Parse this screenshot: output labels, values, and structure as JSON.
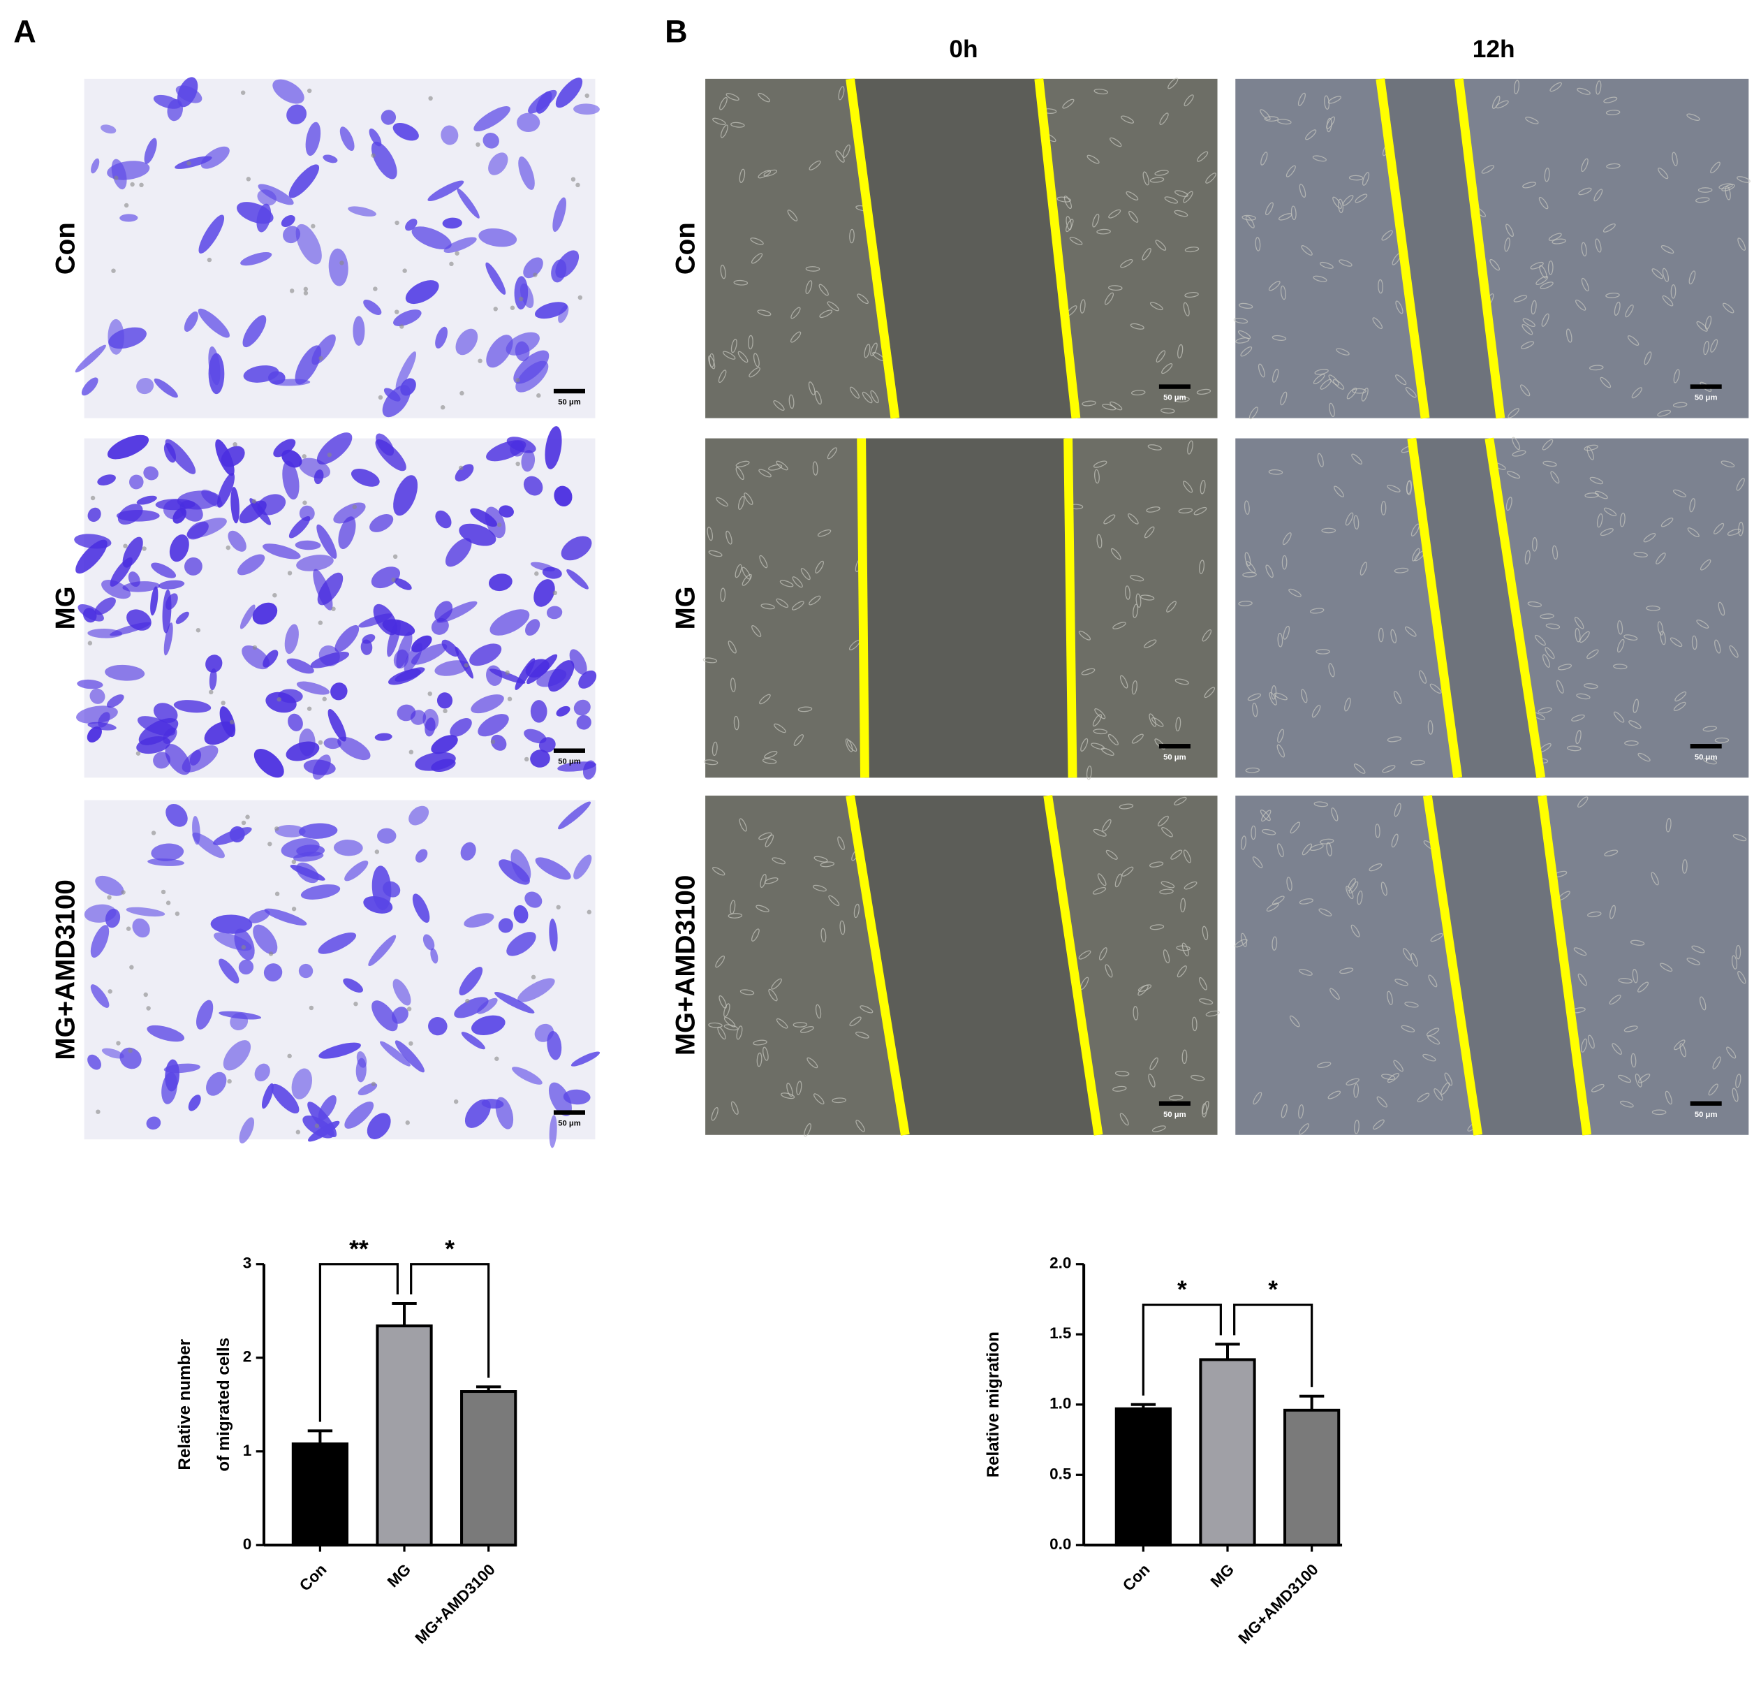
{
  "panel_a": {
    "label": "A",
    "rows": [
      "Con",
      "MG",
      "MG+AMD3100"
    ],
    "scale_bar": "50 μm"
  },
  "panel_b": {
    "label": "B",
    "columns": [
      "0h",
      "12h"
    ],
    "rows": [
      "Con",
      "MG",
      "MG+AMD3100"
    ],
    "scale_bar": "50 μm"
  },
  "chart_data": [
    {
      "type": "bar",
      "ylabel": [
        "Relative number",
        "of migrated cells"
      ],
      "categories": [
        "Con",
        "MG",
        "MG+AMD3100"
      ],
      "values": [
        1.08,
        2.34,
        1.64
      ],
      "errors": [
        0.14,
        0.24,
        0.05
      ],
      "colors": [
        "#000000",
        "#a0a0a6",
        "#7a7a7a"
      ],
      "ylim": [
        0,
        3
      ],
      "yticks": [
        0,
        1,
        2,
        3
      ],
      "significance": [
        {
          "groups": [
            "Con",
            "MG"
          ],
          "label": "**"
        },
        {
          "groups": [
            "MG",
            "MG+AMD3100"
          ],
          "label": "*"
        }
      ]
    },
    {
      "type": "bar",
      "ylabel": [
        "Relative migration"
      ],
      "categories": [
        "Con",
        "MG",
        "MG+AMD3100"
      ],
      "values": [
        0.97,
        1.32,
        0.96
      ],
      "errors": [
        0.03,
        0.11,
        0.1
      ],
      "colors": [
        "#000000",
        "#a0a0a6",
        "#7a7a7a"
      ],
      "ylim": [
        0,
        2
      ],
      "yticks": [
        {
          "value": 0,
          "label": "0.0"
        },
        0.5,
        {
          "value": 1,
          "label": "1.0"
        },
        1.5,
        {
          "value": 2,
          "label": "2.0"
        }
      ],
      "significance": [
        {
          "groups": [
            "Con",
            "MG"
          ],
          "label": "*"
        },
        {
          "groups": [
            "MG",
            "MG+AMD3100"
          ],
          "label": "*"
        }
      ]
    }
  ]
}
